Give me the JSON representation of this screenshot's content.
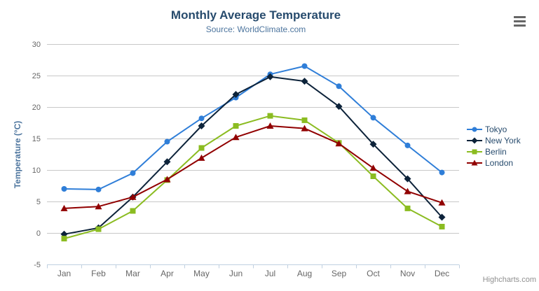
{
  "chart_data": {
    "type": "line",
    "title": "Monthly Average Temperature",
    "subtitle": "Source: WorldClimate.com",
    "categories": [
      "Jan",
      "Feb",
      "Mar",
      "Apr",
      "May",
      "Jun",
      "Jul",
      "Aug",
      "Sep",
      "Oct",
      "Nov",
      "Dec"
    ],
    "xlabel": "",
    "ylabel": "Temperature (°C)",
    "ylim": [
      -5,
      30
    ],
    "y_ticks": [
      -5,
      0,
      5,
      10,
      15,
      20,
      25,
      30
    ],
    "grid": "horizontal",
    "legend_position": "right",
    "series": [
      {
        "name": "Tokyo",
        "color": "#2f7ed8",
        "marker": "circle",
        "values": [
          7.0,
          6.9,
          9.5,
          14.5,
          18.2,
          21.5,
          25.2,
          26.5,
          23.3,
          18.3,
          13.9,
          9.6
        ]
      },
      {
        "name": "New York",
        "color": "#0d233a",
        "marker": "diamond",
        "values": [
          -0.2,
          0.8,
          5.7,
          11.3,
          17.0,
          22.0,
          24.8,
          24.1,
          20.1,
          14.1,
          8.6,
          2.5
        ]
      },
      {
        "name": "Berlin",
        "color": "#8bbc21",
        "marker": "square",
        "values": [
          -0.9,
          0.6,
          3.5,
          8.4,
          13.5,
          17.0,
          18.6,
          17.9,
          14.3,
          9.0,
          3.9,
          1.0
        ]
      },
      {
        "name": "London",
        "color": "#910000",
        "marker": "triangle",
        "values": [
          3.9,
          4.2,
          5.7,
          8.5,
          11.9,
          15.2,
          17.0,
          16.6,
          14.2,
          10.3,
          6.6,
          4.8
        ]
      }
    ]
  },
  "credits": {
    "label": "Highcharts.com"
  },
  "export_menu": {
    "icon": "hamburger-icon"
  },
  "colors": {
    "background": "#ffffff",
    "grid_line": "#c8c8c8",
    "axis_line": "#c0d0e0",
    "tick_mark": "#c0d0e0",
    "tick_label": "#666666",
    "title_text": "#274b6d",
    "subtitle_text": "#4d759e",
    "axis_title_text": "#4d759e",
    "legend_text": "#274b6d",
    "credits_text": "#909090"
  }
}
